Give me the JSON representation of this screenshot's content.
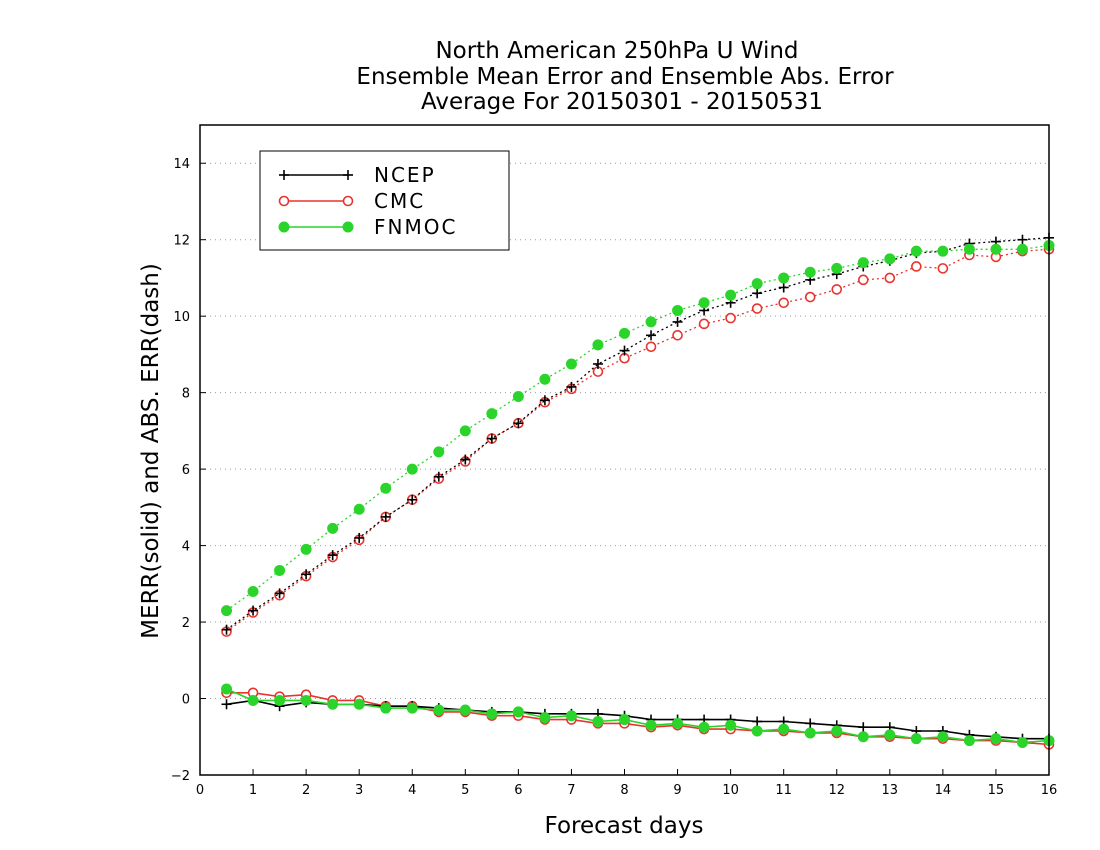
{
  "chart_data": {
    "type": "line",
    "title": [
      "North American 250hPa U Wind",
      "Ensemble Mean Error and Ensemble Abs. Error",
      "Average For 20150301 - 20150531"
    ],
    "xlabel": "Forecast days",
    "ylabel": "MERR(solid) and ABS. ERR(dash)",
    "xlim": [
      0,
      16
    ],
    "ylim": [
      -2,
      15
    ],
    "xticks": [
      0,
      1,
      2,
      3,
      4,
      5,
      6,
      7,
      8,
      9,
      10,
      11,
      12,
      13,
      14,
      15,
      16
    ],
    "yticks": [
      -2,
      0,
      2,
      4,
      6,
      8,
      10,
      12,
      14
    ],
    "grid": "horizontal dotted",
    "legend_position": "top-left",
    "x": [
      0.5,
      1,
      1.5,
      2,
      2.5,
      3,
      3.5,
      4,
      4.5,
      5,
      5.5,
      6,
      6.5,
      7,
      7.5,
      8,
      8.5,
      9,
      9.5,
      10,
      10.5,
      11,
      11.5,
      12,
      12.5,
      13,
      13.5,
      14,
      14.5,
      15,
      15.5,
      16
    ],
    "series": [
      {
        "name": "NCEP",
        "color": "#000000",
        "marker": "plus",
        "mean_error": [
          -0.15,
          -0.05,
          -0.2,
          -0.1,
          -0.15,
          -0.15,
          -0.2,
          -0.2,
          -0.25,
          -0.3,
          -0.35,
          -0.35,
          -0.4,
          -0.4,
          -0.4,
          -0.45,
          -0.55,
          -0.55,
          -0.55,
          -0.55,
          -0.6,
          -0.6,
          -0.65,
          -0.7,
          -0.75,
          -0.75,
          -0.85,
          -0.85,
          -0.95,
          -1.0,
          -1.05,
          -1.05
        ],
        "abs_error": [
          1.8,
          2.3,
          2.75,
          3.25,
          3.75,
          4.2,
          4.75,
          5.2,
          5.8,
          6.25,
          6.8,
          7.2,
          7.8,
          8.15,
          8.75,
          9.1,
          9.5,
          9.85,
          10.15,
          10.35,
          10.6,
          10.75,
          10.95,
          11.1,
          11.3,
          11.45,
          11.65,
          11.7,
          11.9,
          11.95,
          12.0,
          12.05
        ]
      },
      {
        "name": "CMC",
        "color": "#e8342f",
        "marker": "open-circle",
        "mean_error": [
          0.15,
          0.15,
          0.05,
          0.1,
          -0.05,
          -0.05,
          -0.2,
          -0.2,
          -0.35,
          -0.35,
          -0.45,
          -0.45,
          -0.55,
          -0.55,
          -0.65,
          -0.65,
          -0.75,
          -0.7,
          -0.8,
          -0.8,
          -0.85,
          -0.85,
          -0.9,
          -0.9,
          -1.0,
          -1.0,
          -1.05,
          -1.05,
          -1.1,
          -1.1,
          -1.15,
          -1.2
        ],
        "abs_error": [
          1.75,
          2.25,
          2.7,
          3.2,
          3.7,
          4.15,
          4.75,
          5.2,
          5.75,
          6.2,
          6.8,
          7.2,
          7.75,
          8.1,
          8.55,
          8.9,
          9.2,
          9.5,
          9.8,
          9.95,
          10.2,
          10.35,
          10.5,
          10.7,
          10.95,
          11.0,
          11.3,
          11.25,
          11.6,
          11.55,
          11.7,
          11.75
        ]
      },
      {
        "name": "FNMOC",
        "color": "#2bd42b",
        "marker": "filled-circle",
        "mean_error": [
          0.25,
          -0.05,
          -0.05,
          -0.05,
          -0.15,
          -0.15,
          -0.25,
          -0.25,
          -0.3,
          -0.3,
          -0.4,
          -0.35,
          -0.5,
          -0.45,
          -0.6,
          -0.55,
          -0.7,
          -0.65,
          -0.75,
          -0.7,
          -0.85,
          -0.8,
          -0.9,
          -0.85,
          -1.0,
          -0.95,
          -1.05,
          -1.0,
          -1.1,
          -1.05,
          -1.15,
          -1.1
        ],
        "abs_error": [
          2.3,
          2.8,
          3.35,
          3.9,
          4.45,
          4.95,
          5.5,
          6.0,
          6.45,
          7.0,
          7.45,
          7.9,
          8.35,
          8.75,
          9.25,
          9.55,
          9.85,
          10.15,
          10.35,
          10.55,
          10.85,
          11.0,
          11.15,
          11.25,
          11.4,
          11.5,
          11.7,
          11.7,
          11.75,
          11.75,
          11.75,
          11.85
        ]
      }
    ]
  }
}
